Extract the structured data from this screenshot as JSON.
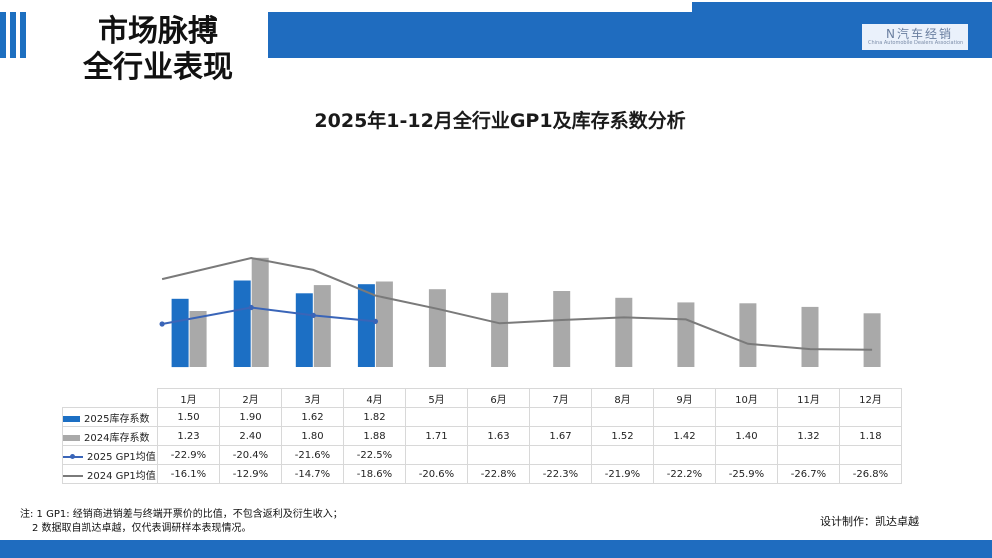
{
  "slide": {
    "title_line1": "市场脉搏",
    "title_line2": "全行业表现",
    "logo_text": "N汽车经销",
    "logo_subtext": "China Automobile Dealers Association"
  },
  "note": {
    "line1": "注: 1 GP1: 经销商进销差与终端开票价的比值，不包含返利及衍生收入；",
    "line2": "2 数据取自凯达卓越，仅代表调研样本表现情况。"
  },
  "credit": "设计制作：凯达卓越",
  "colors": {
    "blue": "#1c6fc4",
    "gray": "#a9a9a9",
    "line2025": "#3a65b8",
    "line2024": "#7a7a7a",
    "band": "#1f6cbf"
  },
  "chart_data": {
    "type": "bar",
    "title": "2025年1-12月全行业GP1及库存系数分析",
    "categories": [
      "1月",
      "2月",
      "3月",
      "4月",
      "5月",
      "6月",
      "7月",
      "8月",
      "9月",
      "10月",
      "11月",
      "12月"
    ],
    "series": [
      {
        "name": "2025库存系数",
        "kind": "bar",
        "values": [
          1.5,
          1.9,
          1.62,
          1.82,
          null,
          null,
          null,
          null,
          null,
          null,
          null,
          null
        ],
        "labels": [
          "1.50",
          "1.90",
          "1.62",
          "1.82",
          "",
          "",
          "",
          "",
          "",
          "",
          "",
          ""
        ]
      },
      {
        "name": "2024库存系数",
        "kind": "bar",
        "values": [
          1.23,
          2.4,
          1.8,
          1.88,
          1.71,
          1.63,
          1.67,
          1.52,
          1.42,
          1.4,
          1.32,
          1.18
        ],
        "labels": [
          "1.23",
          "2.40",
          "1.80",
          "1.88",
          "1.71",
          "1.63",
          "1.67",
          "1.52",
          "1.42",
          "1.40",
          "1.32",
          "1.18"
        ]
      },
      {
        "name": "2025 GP1均值",
        "kind": "line",
        "values": [
          -22.9,
          -20.4,
          -21.6,
          -22.5,
          null,
          null,
          null,
          null,
          null,
          null,
          null,
          null
        ],
        "labels": [
          "-22.9%",
          "-20.4%",
          "-21.6%",
          "-22.5%",
          "",
          "",
          "",
          "",
          "",
          "",
          "",
          ""
        ]
      },
      {
        "name": "2024 GP1均值",
        "kind": "line",
        "values": [
          -16.1,
          -12.9,
          -14.7,
          -18.6,
          -20.6,
          -22.8,
          -22.3,
          -21.9,
          -22.2,
          -25.9,
          -26.7,
          -26.8
        ],
        "labels": [
          "-16.1%",
          "-12.9%",
          "-14.7%",
          "-18.6%",
          "-20.6%",
          "-22.8%",
          "-22.3%",
          "-21.9%",
          "-22.2%",
          "-25.9%",
          "-26.7%",
          "-26.8%"
        ]
      }
    ]
  }
}
